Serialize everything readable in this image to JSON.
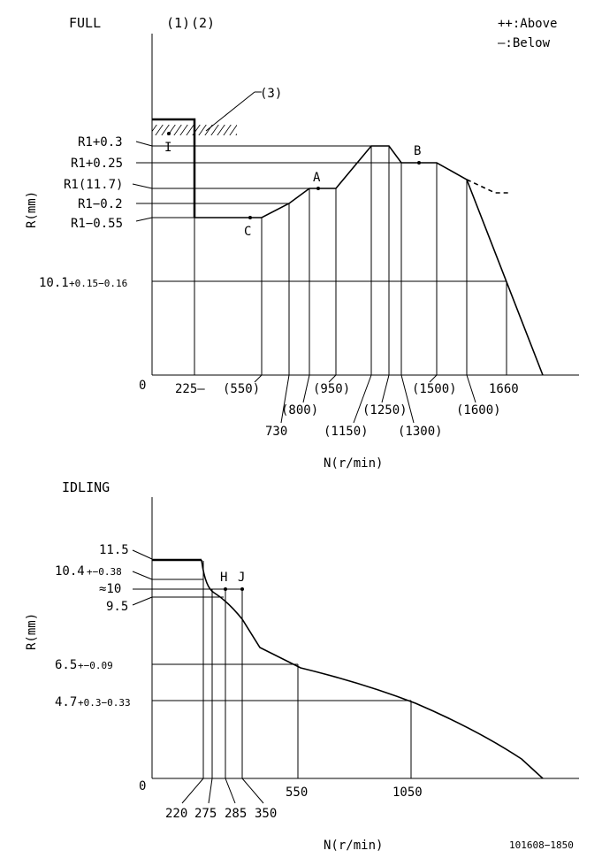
{
  "full": {
    "title": "FULL",
    "notes": [
      "(1)",
      "(2)"
    ],
    "callout": "(3)",
    "legend_above": "++:Above",
    "legend_below": "—:Below",
    "axis_y": "R(mm)",
    "axis_x": "N(r/min)",
    "origin": "0",
    "y_labels": {
      "r1p03": "R1+0.3",
      "r1p025": "R1+0.25",
      "r1": "R1(11.7)",
      "r1m02": "R1−0.2",
      "r1m055": "R1−0.55",
      "v101_main": "10.1",
      "v101_tol": "+0.15−0.16"
    },
    "x_labels": {
      "n225": "225—",
      "n550": "(550)",
      "n730": "730",
      "n800": "(800)",
      "n950": "(950)",
      "n1150": "(1150)",
      "n1250": "(1250)",
      "n1300": "(1300)",
      "n1500": "(1500)",
      "n1600": "(1600)",
      "n1660": "1660"
    },
    "points": {
      "I": "I",
      "A": "A",
      "B": "B",
      "C": "C"
    }
  },
  "idling": {
    "title": "IDLING",
    "axis_y": "R(mm)",
    "axis_x": "N(r/min)",
    "origin": "0",
    "y_labels": {
      "v115": "11.5",
      "v104_main": "10.4",
      "v104_tol": "+−0.38",
      "v10": "≈10",
      "v95": "9.5",
      "v65_main": "6.5",
      "v65_tol": "+−0.09",
      "v47_main": "4.7",
      "v47_tol": "+0.3−0.33"
    },
    "x_labels": {
      "n220": "220",
      "n275": "275",
      "n285": "285",
      "n350": "350",
      "n550": "550",
      "n1050": "1050"
    },
    "points": {
      "H": "H",
      "J": "J"
    }
  },
  "drawing_number": "101608−1850"
}
